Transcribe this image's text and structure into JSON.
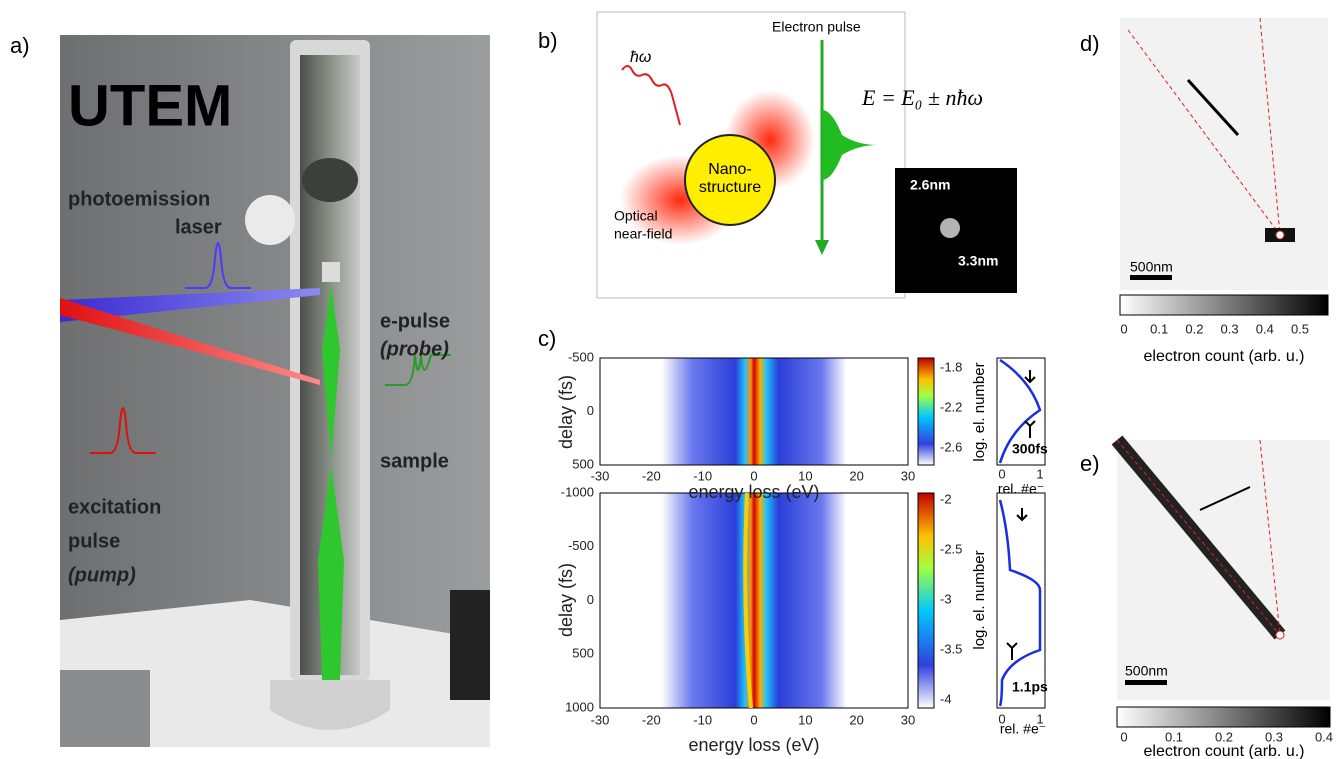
{
  "panel_a": {
    "label": "a)",
    "title": "UTEM",
    "photoemission": "photoemission",
    "laser": "laser",
    "epulse": "e-pulse",
    "probe": "(probe)",
    "sample": "sample",
    "excitation": "excitation",
    "pulse": "pulse",
    "pump": "(pump)"
  },
  "panel_b": {
    "label": "b)",
    "photon": "ħω",
    "electron_pulse": "Electron pulse",
    "equation": "E = E₀ ± nħω",
    "nano1": "Nano-",
    "nano2": "structure",
    "optical1": "Optical",
    "optical2": "near-field",
    "size1": "2.6nm",
    "size2": "3.3nm"
  },
  "panel_c": {
    "label": "c)",
    "top": {
      "ylabel": "delay (fs)",
      "yticks": [
        "-500",
        "0",
        "500"
      ],
      "xticks": [
        "-30",
        "-20",
        "-10",
        "0",
        "10",
        "20",
        "30"
      ],
      "xlabel": "energy loss (eV)",
      "cbar_ticks": [
        "-1.8",
        "-2.2",
        "-2.6"
      ],
      "cbar_label": "log. el. number",
      "width_label": "300fs",
      "profile_xticks": [
        "0",
        "1"
      ],
      "profile_xlabel": "rel. #e⁻"
    },
    "bottom": {
      "ylabel": "delay (fs)",
      "yticks": [
        "-1000",
        "-500",
        "0",
        "500",
        "1000"
      ],
      "xticks": [
        "-30",
        "-20",
        "-10",
        "0",
        "10",
        "20",
        "30"
      ],
      "xlabel": "energy loss (eV)",
      "cbar_ticks": [
        "-2",
        "-2.5",
        "-3",
        "-3.5",
        "-4"
      ],
      "cbar_label": "log. el. number",
      "width_label": "1.1ps",
      "profile_xticks": [
        "0",
        "1"
      ],
      "profile_xlabel": "rel. #e⁻"
    }
  },
  "panel_d": {
    "label": "d)",
    "scale": "500nm",
    "cbar_ticks": [
      "0",
      "0.1",
      "0.2",
      "0.3",
      "0.4",
      "0.5"
    ],
    "cbar_label": "electron count (arb. u.)"
  },
  "panel_e": {
    "label": "e)",
    "scale": "500nm",
    "cbar_ticks": [
      "0",
      "0.1",
      "0.2",
      "0.3",
      "0.4"
    ],
    "cbar_label": "electron count (arb. u.)"
  }
}
